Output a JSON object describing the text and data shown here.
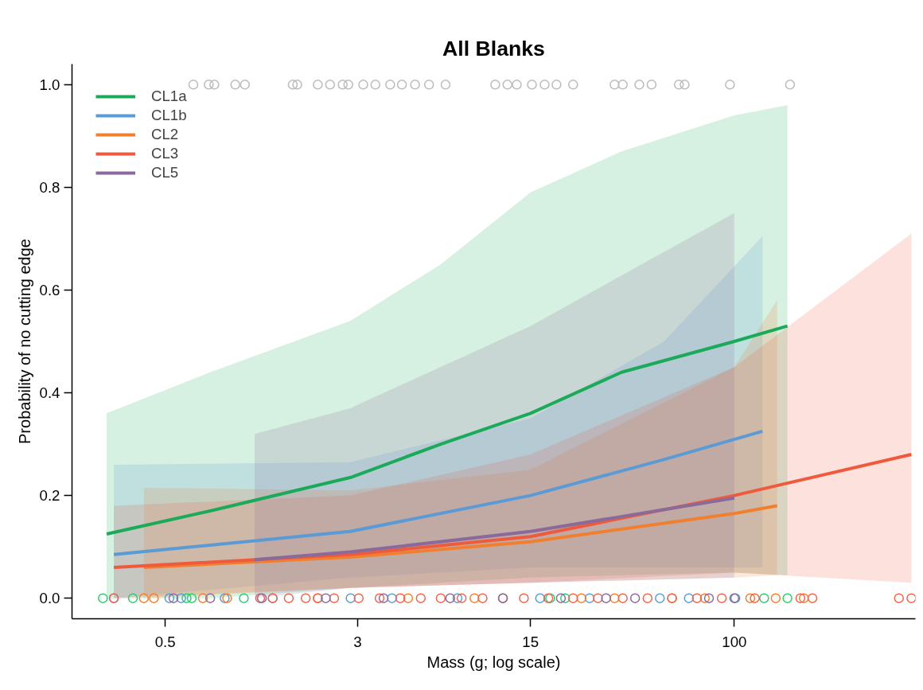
{
  "chart_data": {
    "type": "line",
    "title": "All Blanks",
    "xlabel": "Mass (g; log scale)",
    "ylabel": "Probability of no cutting edge",
    "log": "x",
    "xlim": [
      0.21,
      540
    ],
    "xticks": [
      0.5,
      3,
      15,
      100
    ],
    "ylim": [
      -0.04,
      1.04
    ],
    "yticks": [
      {
        "value": 0,
        "label": "0.0"
      },
      {
        "value": 0.2,
        "label": "0.2"
      },
      {
        "value": 0.4,
        "label": "0.4"
      },
      {
        "value": 0.6,
        "label": "0.6"
      },
      {
        "value": 0.8,
        "label": "0.8"
      },
      {
        "value": 1,
        "label": "1.0"
      }
    ],
    "grid": false,
    "legend": "top left",
    "series": [
      {
        "name": "CL1a",
        "color": "#1aaa5a",
        "marker": "none",
        "line_style": "solid",
        "x": [
          0.29,
          0.76,
          2.8,
          6.5,
          15,
          35,
          100,
          164
        ],
        "values": [
          0.125,
          0.17,
          0.235,
          0.3,
          0.36,
          0.44,
          0.5,
          0.53
        ],
        "lower": [
          0,
          0,
          0.02,
          0.03,
          0.04,
          0.045,
          0.05,
          0.045
        ],
        "upper": [
          0.36,
          0.44,
          0.54,
          0.65,
          0.79,
          0.87,
          0.94,
          0.96
        ]
      },
      {
        "name": "CL1b",
        "color": "#5b9bd5",
        "marker": "none",
        "line_style": "solid",
        "x": [
          0.31,
          2.8,
          15,
          52,
          130
        ],
        "values": [
          0.085,
          0.13,
          0.2,
          0.27,
          0.325
        ],
        "lower": [
          0,
          0.04,
          0.06,
          0.06,
          0.06
        ],
        "upper": [
          0.26,
          0.265,
          0.35,
          0.5,
          0.705
        ]
      },
      {
        "name": "CL2",
        "color": "#f08030",
        "marker": "none",
        "line_style": "solid",
        "x": [
          0.41,
          2.8,
          15,
          100,
          149
        ],
        "values": [
          0.06,
          0.08,
          0.11,
          0.165,
          0.18
        ],
        "lower": [
          0,
          0.02,
          0.03,
          0.04,
          0.045
        ],
        "upper": [
          0.215,
          0.21,
          0.25,
          0.45,
          0.58
        ]
      },
      {
        "name": "CL3",
        "color": "#f05a3c",
        "marker": "none",
        "line_style": "solid",
        "x": [
          0.31,
          2.8,
          15,
          100,
          520
        ],
        "values": [
          0.06,
          0.085,
          0.12,
          0.2,
          0.28
        ],
        "lower": [
          0,
          0.02,
          0.03,
          0.05,
          0.03
        ],
        "upper": [
          0.18,
          0.2,
          0.28,
          0.45,
          0.71
        ]
      },
      {
        "name": "CL5",
        "color": "#8a6a9a",
        "marker": "none",
        "line_style": "solid",
        "x": [
          1.15,
          2.8,
          15,
          100
        ],
        "values": [
          0.075,
          0.09,
          0.13,
          0.195
        ],
        "lower": [
          0,
          0.02,
          0.03,
          0.04
        ],
        "upper": [
          0.32,
          0.37,
          0.53,
          0.75
        ]
      },
      {
        "type": "scatter",
        "color": "#bbbbbb",
        "marker": "circle",
        "x": [
          0.65,
          0.75,
          0.79,
          0.96,
          1.05,
          1.64,
          1.71,
          2.07,
          2.32,
          2.61,
          2.75,
          3.16,
          3.54,
          4.06,
          4.53,
          5.12,
          5.83,
          6.8,
          10.8,
          12.1,
          13.2,
          15.2,
          17.1,
          19.1,
          22.3,
          32.8,
          35.4,
          41.3,
          46.3,
          59.7,
          63,
          96,
          168
        ],
        "values": [
          1,
          1,
          1,
          1,
          1,
          1,
          1,
          1,
          1,
          1,
          1,
          1,
          1,
          1,
          1,
          1,
          1,
          1,
          1,
          1,
          1,
          1,
          1,
          1,
          1,
          1,
          1,
          1,
          1,
          1,
          1,
          1,
          1
        ]
      },
      {
        "type": "scatter",
        "color": "#2ecc71",
        "marker": "circle",
        "x": [
          0.28,
          0.37,
          0.61,
          0.64,
          1.04,
          18.0,
          20.7,
          132,
          164
        ],
        "values": [
          0,
          0,
          0,
          0,
          0,
          0,
          0,
          0,
          0
        ]
      },
      {
        "type": "scatter",
        "color": "#5b9bd5",
        "marker": "circle",
        "x": [
          0.31,
          0.52,
          0.58,
          0.87,
          1.36,
          2.81,
          4.13,
          7.6,
          16.4,
          26,
          50,
          65.5,
          101
        ],
        "values": [
          0,
          0,
          0,
          0,
          0,
          0,
          0,
          0,
          0,
          0,
          0,
          0,
          0
        ]
      },
      {
        "type": "scatter",
        "color": "#f08030",
        "marker": "circle",
        "x": [
          0.41,
          0.45,
          0.71,
          0.89,
          2.07,
          4.8,
          8.9,
          24.1,
          32.8,
          56,
          76,
          116,
          147,
          191
        ],
        "values": [
          0,
          0,
          0,
          0,
          0,
          0,
          0,
          0,
          0,
          0,
          0,
          0,
          0,
          0
        ]
      },
      {
        "type": "scatter",
        "color": "#f0644a",
        "marker": "circle",
        "x": [
          0.31,
          1.21,
          1.36,
          1.58,
          1.85,
          2.07,
          2.41,
          3.03,
          3.68,
          4.46,
          5.4,
          6.5,
          7.9,
          9.6,
          11.6,
          14.1,
          17.7,
          22.3,
          28.1,
          35.4,
          44.6,
          56,
          70.6,
          89,
          121,
          185,
          207,
          463,
          520
        ],
        "values": [
          0,
          0,
          0,
          0,
          0,
          0,
          0,
          0,
          0,
          0,
          0,
          0,
          0,
          0,
          0,
          0,
          0,
          0,
          0,
          0,
          0,
          0,
          0,
          0,
          0,
          0,
          0,
          0,
          0
        ]
      },
      {
        "type": "scatter",
        "color": "#8a6a9a",
        "marker": "circle",
        "x": [
          0.54,
          0.76,
          1.23,
          2.23,
          3.82,
          7.1,
          11.6,
          19.9,
          30.3,
          39.7,
          79,
          100
        ],
        "values": [
          0,
          0,
          0,
          0,
          0,
          0,
          0,
          0,
          0,
          0,
          0,
          0
        ]
      }
    ]
  }
}
